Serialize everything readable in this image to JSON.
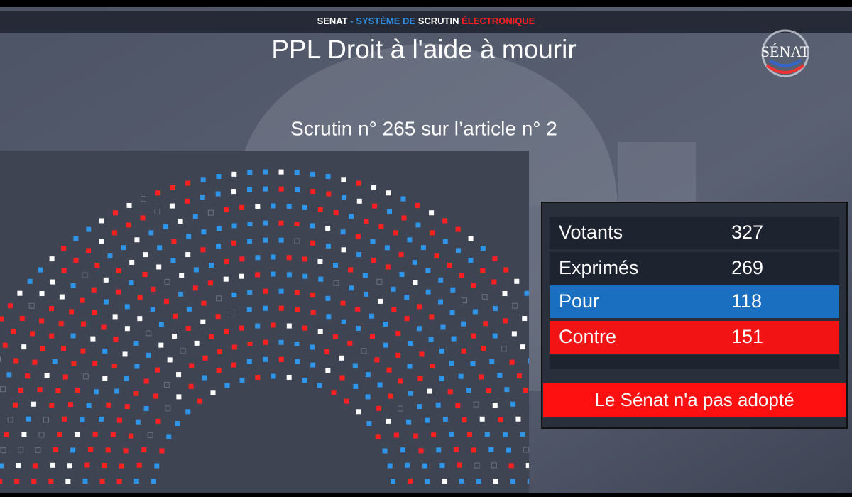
{
  "header": {
    "segments": [
      "SENAT",
      "-",
      "SYSTÈME DE",
      "SCRUTIN",
      "ÉLECTRONIQUE"
    ]
  },
  "title": "PPL Droit à l'aide à mourir",
  "subtitle": "Scrutin n° 265 sur l’article n°  2",
  "logo": "SÉNAT",
  "results": {
    "rows": [
      [
        "Votants",
        327
      ],
      [
        "Exprimés",
        269
      ],
      [
        "Pour",
        118
      ],
      [
        "Contre",
        151
      ]
    ]
  },
  "outcome": "Le Sénat n'a pas adopté"
}
